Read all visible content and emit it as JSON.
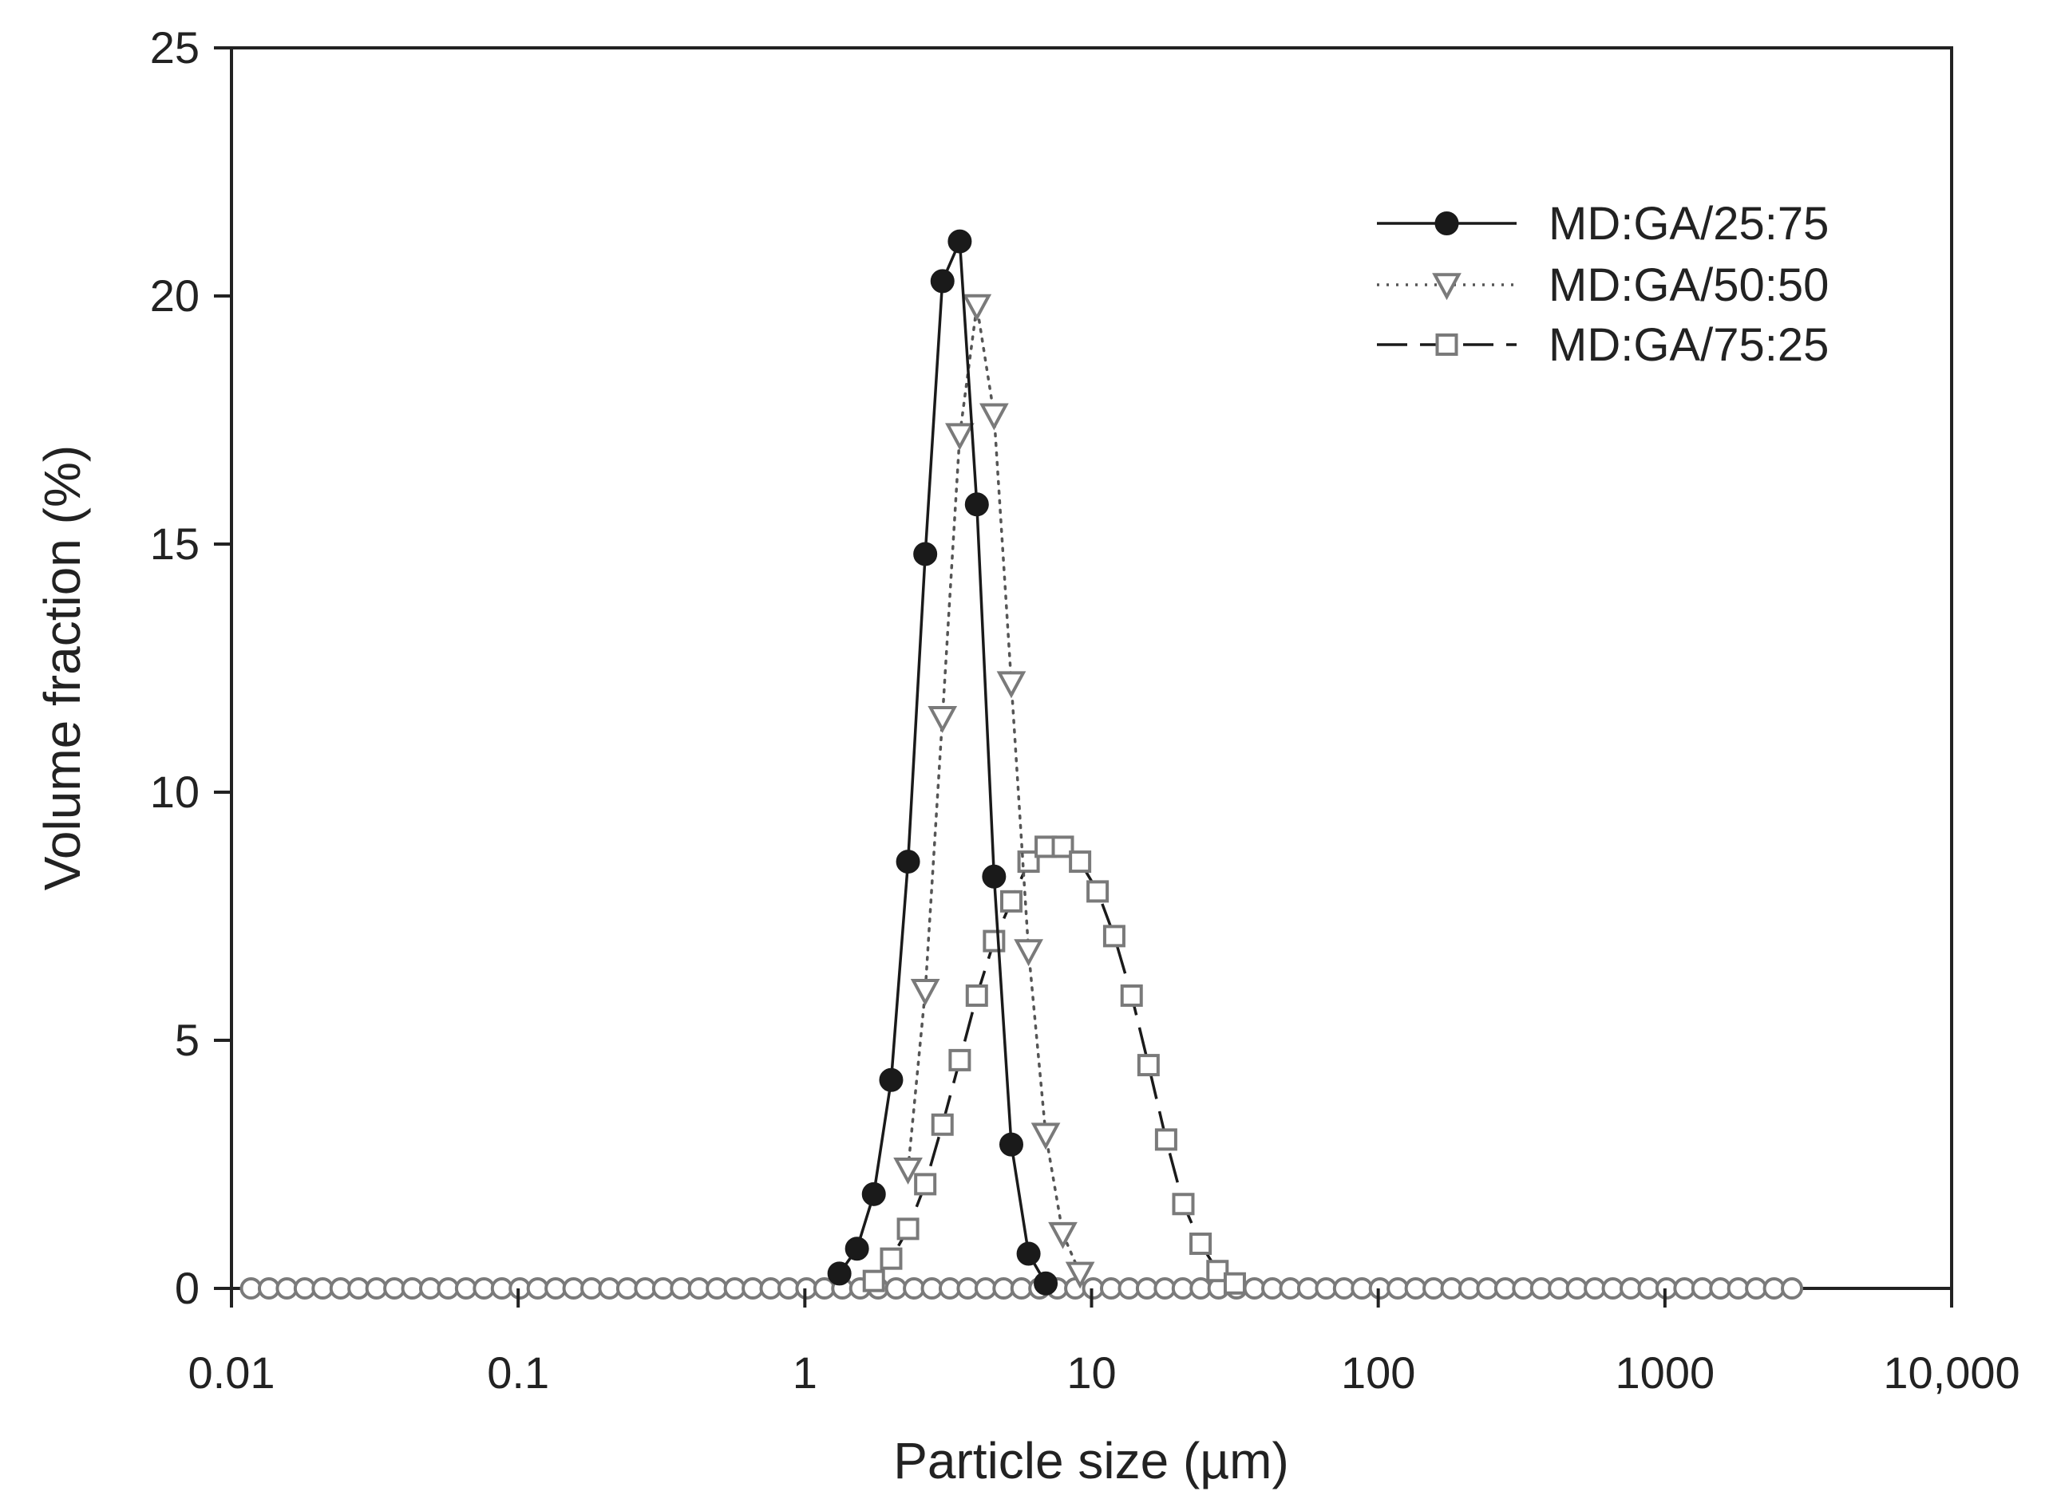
{
  "chart_data": {
    "type": "scatter",
    "title": "",
    "xlabel": "Particle size (µm)",
    "ylabel": "Volume fraction (%)",
    "xscale": "log",
    "xlim": [
      0.01,
      10000
    ],
    "ylim": [
      0,
      25
    ],
    "x_tick_values": [
      0.01,
      0.1,
      1,
      10,
      100,
      1000,
      10000
    ],
    "x_tick_labels": [
      "0.01",
      "0.1",
      "1",
      "10",
      "100",
      "1000",
      "10,000"
    ],
    "y_ticks": [
      0,
      5,
      10,
      15,
      20,
      25
    ],
    "grid": false,
    "legend_position": "top-right",
    "colors": {
      "series_stroke": "#1a1a1a",
      "circle_fill": "#1a1a1a",
      "open_marker_fill": "#ffffff",
      "open_marker_stroke": "#7a7a7a"
    },
    "series": [
      {
        "name": "MD:GA/25:75",
        "marker": "filled-circle",
        "line": "solid",
        "x": [
          1.32,
          1.52,
          1.74,
          2.0,
          2.29,
          2.63,
          3.02,
          3.47,
          3.98,
          4.57,
          5.25,
          6.03,
          6.92
        ],
        "y": [
          0.3,
          0.8,
          1.9,
          4.2,
          8.6,
          14.8,
          20.3,
          21.1,
          15.8,
          8.3,
          2.9,
          0.7,
          0.1
        ]
      },
      {
        "name": "MD:GA/50:50",
        "marker": "down-triangle",
        "line": "dotted",
        "x": [
          2.29,
          2.63,
          3.02,
          3.47,
          3.98,
          4.57,
          5.25,
          6.03,
          6.92,
          7.94,
          9.12
        ],
        "y": [
          2.4,
          6.0,
          11.5,
          17.2,
          19.8,
          17.6,
          12.2,
          6.8,
          3.1,
          1.1,
          0.3
        ]
      },
      {
        "name": "MD:GA/75:25",
        "marker": "open-square",
        "line": "dashed",
        "x": [
          1.74,
          2.0,
          2.29,
          2.63,
          3.02,
          3.47,
          3.98,
          4.57,
          5.25,
          6.03,
          6.92,
          7.94,
          9.12,
          10.5,
          12.0,
          13.8,
          15.8,
          18.2,
          20.9,
          24.0,
          27.5,
          31.6
        ],
        "y": [
          0.15,
          0.6,
          1.2,
          2.1,
          3.3,
          4.6,
          5.9,
          7.0,
          7.8,
          8.6,
          8.9,
          8.9,
          8.6,
          8.0,
          7.1,
          5.9,
          4.5,
          3.0,
          1.7,
          0.9,
          0.35,
          0.1
        ]
      }
    ],
    "baseline_markers": {
      "marker": "open-circle",
      "y": 0,
      "x_range": [
        0.0117,
        3020
      ],
      "count_per_decade": 16
    }
  }
}
